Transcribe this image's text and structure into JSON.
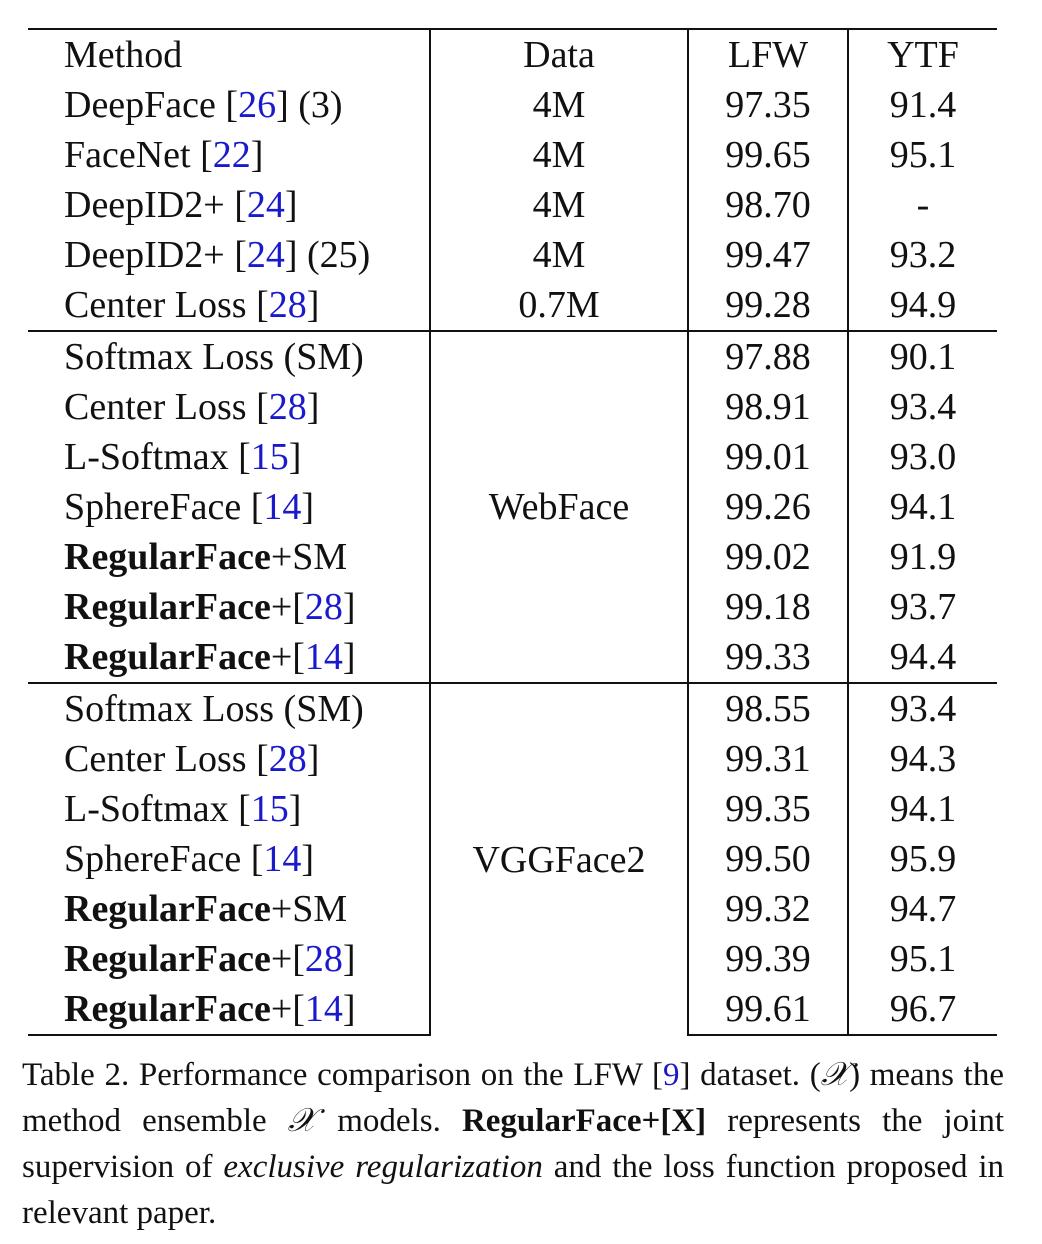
{
  "table": {
    "headers": {
      "method": "Method",
      "data": "Data",
      "lfw": "LFW",
      "ytf": "YTF"
    },
    "groups": [
      {
        "data": "",
        "rows": [
          {
            "name": "DeepFace",
            "ref": "26",
            "suffix": " (3)",
            "data": "4M",
            "lfw": "97.35",
            "ytf": "91.4"
          },
          {
            "name": "FaceNet",
            "ref": "22",
            "suffix": "",
            "data": "4M",
            "lfw": "99.65",
            "ytf": "95.1",
            "lfw_bold": true,
            "ytf_bold": true
          },
          {
            "name": "DeepID2+",
            "ref": "24",
            "suffix": "",
            "data": "4M",
            "lfw": "98.70",
            "ytf": "-"
          },
          {
            "name": "DeepID2+",
            "ref": "24",
            "suffix": " (25)",
            "data": "4M",
            "lfw": "99.47",
            "ytf": "93.2"
          },
          {
            "name": "Center Loss",
            "ref": "28",
            "suffix": "",
            "data": "0.7M",
            "lfw": "99.28",
            "ytf": "94.9"
          }
        ]
      },
      {
        "data": "WebFace",
        "rows": [
          {
            "name": "Softmax Loss (SM)",
            "lfw": "97.88",
            "ytf": "90.1"
          },
          {
            "name": "Center Loss",
            "ref": "28",
            "lfw": "98.91",
            "ytf": "93.4"
          },
          {
            "name": "L-Softmax",
            "ref": "15",
            "lfw": "99.01",
            "ytf": "93.0"
          },
          {
            "name": "SphereFace",
            "ref": "14",
            "lfw": "99.26",
            "ytf": "94.1"
          },
          {
            "name_bold": "RegularFace",
            "name_rest": "+SM",
            "lfw": "99.02",
            "ytf": "91.9"
          },
          {
            "name_bold": "RegularFace",
            "name_rest": "+[",
            "ref": "28",
            "close": "]",
            "lfw": "99.18",
            "ytf": "93.7"
          },
          {
            "name_bold": "RegularFace",
            "name_rest": "+[",
            "ref": "14",
            "close": "]",
            "lfw": "99.33",
            "ytf": "94.4",
            "lfw_bold": true,
            "ytf_bold": true
          }
        ]
      },
      {
        "data": "VGGFace2",
        "rows": [
          {
            "name": "Softmax Loss (SM)",
            "lfw": "98.55",
            "ytf": "93.4"
          },
          {
            "name": "Center Loss",
            "ref": "28",
            "lfw": "99.31",
            "ytf": "94.3"
          },
          {
            "name": "L-Softmax",
            "ref": "15",
            "lfw": "99.35",
            "ytf": "94.1"
          },
          {
            "name": "SphereFace",
            "ref": "14",
            "lfw": "99.50",
            "ytf": "95.9"
          },
          {
            "name_bold": "RegularFace",
            "name_rest": "+SM",
            "lfw": "99.32",
            "ytf": "94.7"
          },
          {
            "name_bold": "RegularFace",
            "name_rest": "+[",
            "ref": "28",
            "close": "]",
            "lfw": "99.39",
            "ytf": "95.1"
          },
          {
            "name_bold": "RegularFace",
            "name_rest": "+[",
            "ref": "14",
            "close": "]",
            "lfw": "99.61",
            "ytf": "96.7",
            "lfw_bold": true,
            "ytf_bold": true
          }
        ]
      }
    ]
  },
  "caption": {
    "p1": "Table 2. Performance comparison on the LFW [",
    "ref": "9",
    "p2": "] dataset. (",
    "sym1": "𝒳",
    "p3": ") means the method ensemble ",
    "sym2": "𝒳",
    "p4": " models. ",
    "bold": "RegularFace+[X]",
    "p5": " represents the joint supervision of ",
    "italic": "exclusive regularization",
    "p6": " and the loss function proposed in relevant paper."
  }
}
